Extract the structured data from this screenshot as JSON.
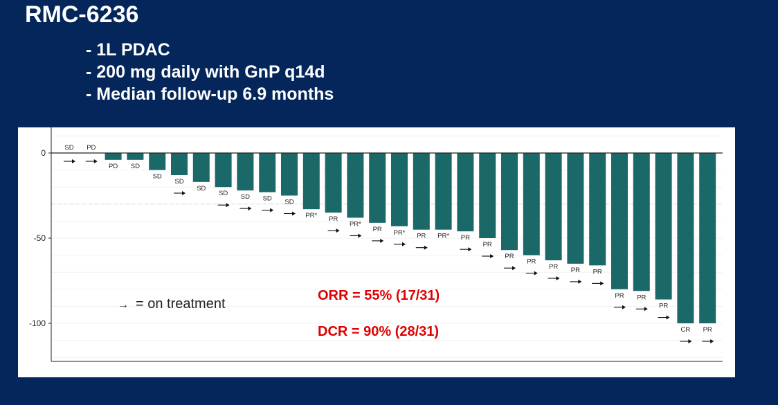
{
  "slide": {
    "title": "RMC-6236",
    "bullets": [
      "- 1L PDAC",
      "- 200 mg daily with GnP q14d",
      "- Median follow-up 6.9 months"
    ]
  },
  "legend": {
    "arrow": "→",
    "text": "= on treatment"
  },
  "stats": {
    "orr": "ORR = 55% (17/31)",
    "dcr": "DCR = 90% (28/31)"
  },
  "colors": {
    "background": "#04265a",
    "bar": "#1b6868",
    "stat_text": "#e00000"
  },
  "chart_data": {
    "type": "bar",
    "title": "",
    "xlabel": "",
    "ylabel": "",
    "ylim": [
      -120,
      14
    ],
    "y_ticks": [
      0,
      -50,
      -100
    ],
    "reference_line": -30,
    "grid": true,
    "bars": [
      {
        "value": 0,
        "response": "SD",
        "on_treatment": true
      },
      {
        "value": 0,
        "response": "PD",
        "on_treatment": true
      },
      {
        "value": -4,
        "response": "PD",
        "on_treatment": false
      },
      {
        "value": -4,
        "response": "SD",
        "on_treatment": false
      },
      {
        "value": -10,
        "response": "SD",
        "on_treatment": false
      },
      {
        "value": -13,
        "response": "SD",
        "on_treatment": true
      },
      {
        "value": -17,
        "response": "SD",
        "on_treatment": false
      },
      {
        "value": -20,
        "response": "SD",
        "on_treatment": true
      },
      {
        "value": -22,
        "response": "SD",
        "on_treatment": true
      },
      {
        "value": -23,
        "response": "SD",
        "on_treatment": true
      },
      {
        "value": -25,
        "response": "SD",
        "on_treatment": true
      },
      {
        "value": -33,
        "response": "PR*",
        "on_treatment": false
      },
      {
        "value": -35,
        "response": "PR",
        "on_treatment": true
      },
      {
        "value": -38,
        "response": "PR*",
        "on_treatment": true
      },
      {
        "value": -41,
        "response": "PR",
        "on_treatment": true
      },
      {
        "value": -43,
        "response": "PR*",
        "on_treatment": true
      },
      {
        "value": -45,
        "response": "PR",
        "on_treatment": true
      },
      {
        "value": -45,
        "response": "PR*",
        "on_treatment": false
      },
      {
        "value": -46,
        "response": "PR",
        "on_treatment": true
      },
      {
        "value": -50,
        "response": "PR",
        "on_treatment": true
      },
      {
        "value": -57,
        "response": "PR",
        "on_treatment": true
      },
      {
        "value": -60,
        "response": "PR",
        "on_treatment": true
      },
      {
        "value": -63,
        "response": "PR",
        "on_treatment": true
      },
      {
        "value": -65,
        "response": "PR",
        "on_treatment": true
      },
      {
        "value": -66,
        "response": "PR",
        "on_treatment": true
      },
      {
        "value": -80,
        "response": "PR",
        "on_treatment": true
      },
      {
        "value": -81,
        "response": "PR",
        "on_treatment": true
      },
      {
        "value": -86,
        "response": "PR",
        "on_treatment": true
      },
      {
        "value": -100,
        "response": "CR",
        "on_treatment": true
      },
      {
        "value": -100,
        "response": "PR",
        "on_treatment": true
      }
    ]
  }
}
